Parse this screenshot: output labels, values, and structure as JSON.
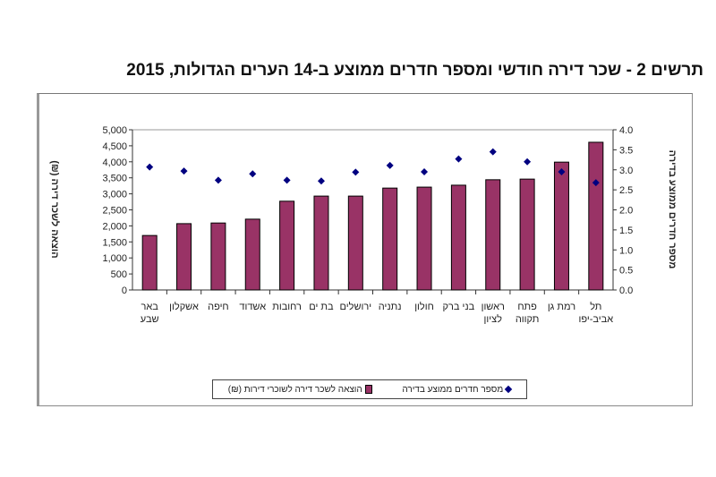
{
  "chart_data": {
    "type": "bar",
    "title": "תרשים 2 - שכר דירה חודשי ומספר חדרים ממוצע ב-14 הערים הגדולות, 2015",
    "categories": [
      [
        "באר",
        "שבע"
      ],
      [
        "אשקלון"
      ],
      [
        "חיפה"
      ],
      [
        "אשדוד"
      ],
      [
        "רחובות"
      ],
      [
        "בת ים"
      ],
      [
        "ירושלים"
      ],
      [
        "נתניה"
      ],
      [
        "חולון"
      ],
      [
        "בני ברק"
      ],
      [
        "ראשון",
        "לציון"
      ],
      [
        "פתח",
        "תקווה"
      ],
      [
        "רמת גן"
      ],
      [
        "תל",
        "אביב-יפו"
      ]
    ],
    "series": [
      {
        "name": "הוצאה לשכר דירה לשוכרי דירות (₪)",
        "type": "bar",
        "axis": "left",
        "color": "#993366",
        "values": [
          1700,
          2070,
          2090,
          2210,
          2770,
          2930,
          2930,
          3180,
          3210,
          3270,
          3440,
          3460,
          3990,
          4610
        ]
      },
      {
        "name": "מספר חדרים ממוצע בדירה",
        "type": "scatter",
        "axis": "right",
        "color": "#000080",
        "marker": "diamond",
        "values": [
          3.07,
          2.97,
          2.74,
          2.9,
          2.74,
          2.72,
          2.94,
          3.11,
          2.95,
          3.27,
          3.45,
          3.2,
          2.95,
          2.68
        ]
      }
    ],
    "ylabel_left": "הוצאה לשכר דירה (₪)",
    "ylabel_right": "מספר חדרים ממוצע בדירה",
    "ylim_left": [
      0,
      5000
    ],
    "yticks_left": [
      "0",
      "500",
      "1,000",
      "1,500",
      "2,000",
      "2,500",
      "3,000",
      "3,500",
      "4,000",
      "4,500",
      "5,000"
    ],
    "ylim_right": [
      0,
      4
    ],
    "yticks_right": [
      "0.0",
      "0.5",
      "1.0",
      "1.5",
      "2.0",
      "2.5",
      "3.0",
      "3.5",
      "4.0"
    ],
    "grid": false,
    "legend": "bottom"
  }
}
